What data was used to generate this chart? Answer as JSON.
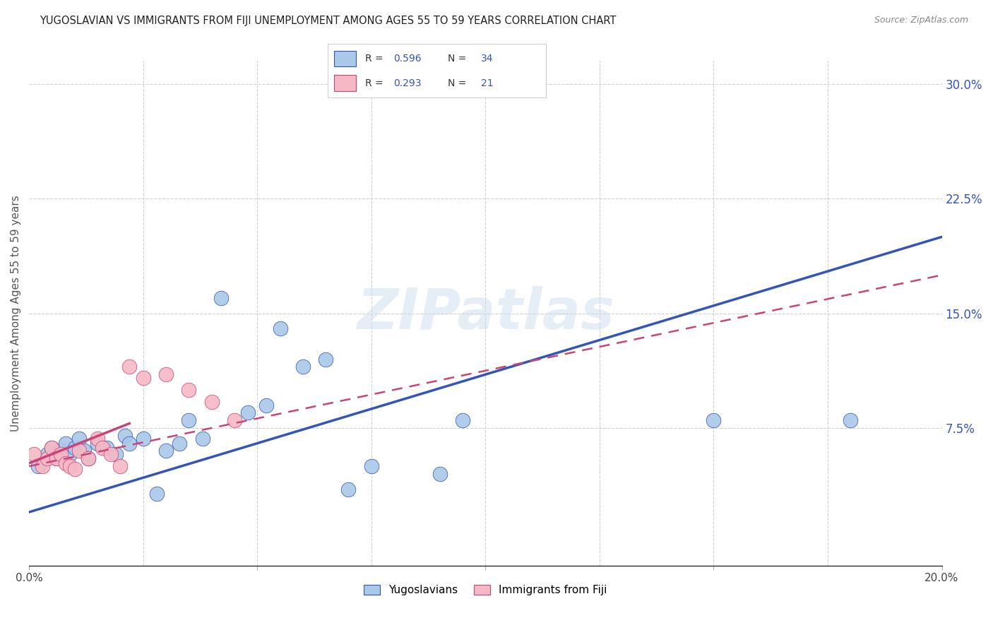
{
  "title": "YUGOSLAVIAN VS IMMIGRANTS FROM FIJI UNEMPLOYMENT AMONG AGES 55 TO 59 YEARS CORRELATION CHART",
  "source": "Source: ZipAtlas.com",
  "ylabel": "Unemployment Among Ages 55 to 59 years",
  "xlim": [
    0.0,
    0.2
  ],
  "ylim": [
    -0.015,
    0.315
  ],
  "blue_R": 0.596,
  "blue_N": 34,
  "pink_R": 0.293,
  "pink_N": 21,
  "blue_color": "#aac8e8",
  "pink_color": "#f5b8c4",
  "trend_blue": "#3355bb",
  "trend_pink": "#cc4477",
  "blue_scatter_x": [
    0.002,
    0.004,
    0.005,
    0.006,
    0.007,
    0.008,
    0.009,
    0.01,
    0.011,
    0.012,
    0.013,
    0.015,
    0.017,
    0.019,
    0.021,
    0.022,
    0.025,
    0.028,
    0.03,
    0.033,
    0.035,
    0.038,
    0.042,
    0.048,
    0.052,
    0.055,
    0.06,
    0.065,
    0.07,
    0.075,
    0.09,
    0.095,
    0.15,
    0.18
  ],
  "blue_scatter_y": [
    0.05,
    0.058,
    0.062,
    0.055,
    0.06,
    0.065,
    0.058,
    0.062,
    0.068,
    0.06,
    0.055,
    0.065,
    0.062,
    0.058,
    0.07,
    0.065,
    0.068,
    0.032,
    0.06,
    0.065,
    0.08,
    0.068,
    0.16,
    0.085,
    0.09,
    0.14,
    0.115,
    0.12,
    0.035,
    0.05,
    0.045,
    0.08,
    0.08,
    0.08
  ],
  "pink_scatter_x": [
    0.001,
    0.003,
    0.004,
    0.005,
    0.006,
    0.007,
    0.008,
    0.009,
    0.01,
    0.011,
    0.013,
    0.015,
    0.016,
    0.018,
    0.02,
    0.022,
    0.025,
    0.03,
    0.035,
    0.04,
    0.045
  ],
  "pink_scatter_y": [
    0.058,
    0.05,
    0.055,
    0.062,
    0.055,
    0.058,
    0.052,
    0.05,
    0.048,
    0.06,
    0.055,
    0.068,
    0.062,
    0.058,
    0.05,
    0.115,
    0.108,
    0.11,
    0.1,
    0.092,
    0.08
  ],
  "blue_line_x": [
    0.0,
    0.2
  ],
  "blue_line_y": [
    0.02,
    0.2
  ],
  "pink_line_x": [
    0.0,
    0.2
  ],
  "pink_line_y": [
    0.05,
    0.175
  ],
  "pink_line_end_x": 0.07,
  "watermark": "ZIPatlas",
  "background_color": "#ffffff",
  "grid_color": "#d0d0d0",
  "ytick_vals": [
    0.075,
    0.15,
    0.225,
    0.3
  ],
  "ytick_labels": [
    "7.5%",
    "15.0%",
    "22.5%",
    "30.0%"
  ],
  "xtick_positions": [
    0.0,
    0.05,
    0.1,
    0.15,
    0.2
  ],
  "xtick_labels": [
    "0.0%",
    "",
    "",
    "",
    "20.0%"
  ]
}
